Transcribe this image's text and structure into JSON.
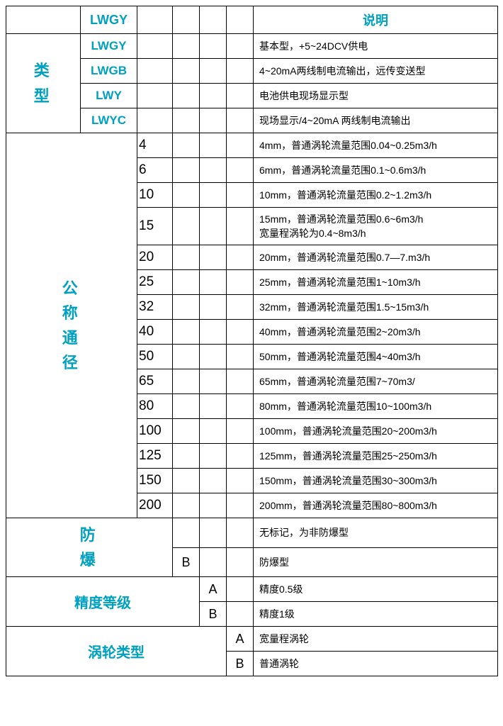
{
  "colors": {
    "cyan": "#00a0c0",
    "border": "#000000",
    "bg": "#ffffff",
    "text": "#000000"
  },
  "header": {
    "col1": "LWGY",
    "col7": "说明"
  },
  "types": {
    "label": "类\n型",
    "rows": [
      {
        "code": "LWGY",
        "desc": "基本型，+5~24DCV供电"
      },
      {
        "code": "LWGB",
        "desc": "4~20mA两线制电流输出，远传变送型"
      },
      {
        "code": "LWY",
        "desc": "电池供电现场显示型"
      },
      {
        "code": "LWYC",
        "desc": "现场显示/4~20mA 两线制电流输出"
      }
    ]
  },
  "diameter": {
    "label": "公\n称\n通\n径",
    "rows": [
      {
        "n": "4",
        "desc": "4mm，普通涡轮流量范围0.04~0.25m3/h"
      },
      {
        "n": "6",
        "desc": "6mm，普通涡轮流量范围0.1~0.6m3/h"
      },
      {
        "n": "10",
        "desc": "10mm，普通涡轮流量范围0.2~1.2m3/h"
      },
      {
        "n": "15",
        "desc": "15mm，普通涡轮流量范围0.6~6m3/h\n宽量程涡轮为0.4~8m3/h"
      },
      {
        "n": "20",
        "desc": "20mm，普通涡轮流量范围0.7—7.m3/h"
      },
      {
        "n": "25",
        "desc": "25mm，普通涡轮流量范围1~10m3/h"
      },
      {
        "n": "32",
        "desc": "32mm，普通涡轮流量范围1.5~15m3/h"
      },
      {
        "n": "40",
        "desc": "40mm，普通涡轮流量范围2~20m3/h"
      },
      {
        "n": "50",
        "desc": "50mm，普通涡轮流量范围4~40m3/h"
      },
      {
        "n": "65",
        "desc": "65mm，普通涡轮流量范围7~70m3/"
      },
      {
        "n": "80",
        "desc": "80mm，普通涡轮流量范围10~100m3/h"
      },
      {
        "n": "100",
        "desc": "100mm，普通涡轮流量范围20~200m3/h"
      },
      {
        "n": "125",
        "desc": "125mm，普通涡轮流量范围25~250m3/h"
      },
      {
        "n": "150",
        "desc": "150mm，普通涡轮流量范围30~300m3/h"
      },
      {
        "n": "200",
        "desc": "200mm，普通涡轮流量范围80~800m3/h"
      }
    ]
  },
  "explosion": {
    "label": "防\n爆",
    "rows": [
      {
        "code": "",
        "desc": "无标记，为非防爆型"
      },
      {
        "code": "B",
        "desc": "防爆型"
      }
    ]
  },
  "accuracy": {
    "label": "精度等级",
    "rows": [
      {
        "code": "A",
        "desc": "精度0.5级"
      },
      {
        "code": "B",
        "desc": "精度1级"
      }
    ]
  },
  "turbine": {
    "label": "涡轮类型",
    "rows": [
      {
        "code": "A",
        "desc": "宽量程涡轮"
      },
      {
        "code": "B",
        "desc": "普通涡轮"
      }
    ]
  }
}
